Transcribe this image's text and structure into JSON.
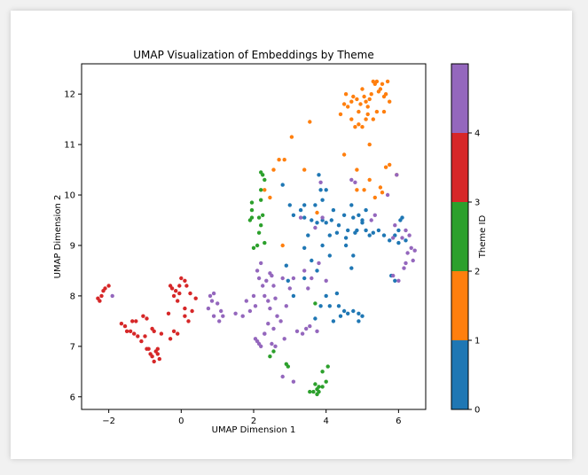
{
  "chart_data": {
    "type": "scatter",
    "title": "UMAP Visualization of Embeddings by Theme",
    "xlabel": "UMAP Dimension 1",
    "ylabel": "UMAP Dimension 2",
    "xlim": [
      -2.75,
      6.75
    ],
    "ylim": [
      5.75,
      12.6
    ],
    "xticks": [
      -2,
      0,
      2,
      4,
      6
    ],
    "xtick_labels": [
      "−2",
      "0",
      "2",
      "4",
      "6"
    ],
    "yticks": [
      6,
      7,
      8,
      9,
      10,
      11,
      12
    ],
    "ytick_labels": [
      "6",
      "7",
      "8",
      "9",
      "10",
      "11",
      "12"
    ],
    "grid": false,
    "colorbar": {
      "label": "Theme ID",
      "range": [
        0,
        5
      ],
      "ticks": [
        0,
        1,
        2,
        3,
        4
      ],
      "tick_labels": [
        "0",
        "1",
        "2",
        "3",
        "4"
      ],
      "colors": [
        "#1f77b4",
        "#ff7f0e",
        "#2ca02c",
        "#d62728",
        "#9467bd"
      ]
    },
    "series": [
      {
        "theme": 0,
        "color": "#1f77b4",
        "points": [
          [
            2.8,
            10.2
          ],
          [
            3.0,
            9.8
          ],
          [
            3.1,
            9.6
          ],
          [
            3.3,
            9.7
          ],
          [
            3.4,
            9.55
          ],
          [
            3.7,
            9.8
          ],
          [
            3.8,
            10.4
          ],
          [
            3.85,
            10.1
          ],
          [
            3.9,
            9.9
          ],
          [
            4.0,
            10.1
          ],
          [
            3.6,
            9.5
          ],
          [
            3.75,
            9.45
          ],
          [
            3.9,
            9.5
          ],
          [
            4.0,
            9.45
          ],
          [
            4.15,
            9.5
          ],
          [
            4.2,
            9.7
          ],
          [
            4.35,
            9.4
          ],
          [
            4.5,
            9.6
          ],
          [
            4.6,
            9.3
          ],
          [
            4.7,
            9.8
          ],
          [
            4.75,
            9.55
          ],
          [
            4.8,
            9.25
          ],
          [
            4.9,
            9.6
          ],
          [
            5.0,
            9.5
          ],
          [
            5.1,
            9.3
          ],
          [
            5.2,
            9.2
          ],
          [
            5.3,
            9.25
          ],
          [
            5.45,
            9.3
          ],
          [
            5.6,
            9.2
          ],
          [
            5.75,
            9.1
          ],
          [
            5.9,
            9.2
          ],
          [
            6.0,
            9.3
          ],
          [
            6.05,
            9.5
          ],
          [
            6.1,
            9.55
          ],
          [
            6.2,
            9.1
          ],
          [
            4.55,
            9.0
          ],
          [
            4.75,
            8.8
          ],
          [
            4.3,
            9.25
          ],
          [
            4.1,
            9.2
          ],
          [
            3.5,
            9.2
          ],
          [
            3.9,
            9.0
          ],
          [
            4.1,
            8.8
          ],
          [
            4.7,
            8.55
          ],
          [
            3.4,
            8.95
          ],
          [
            3.6,
            8.7
          ],
          [
            3.75,
            8.5
          ],
          [
            2.9,
            8.6
          ],
          [
            2.95,
            8.3
          ],
          [
            3.1,
            8.0
          ],
          [
            3.4,
            8.35
          ],
          [
            4.0,
            8.0
          ],
          [
            4.3,
            8.05
          ],
          [
            3.85,
            7.8
          ],
          [
            4.35,
            7.8
          ],
          [
            4.5,
            7.7
          ],
          [
            4.6,
            7.65
          ],
          [
            4.75,
            7.7
          ],
          [
            4.9,
            7.65
          ],
          [
            5.0,
            7.6
          ],
          [
            4.9,
            7.5
          ],
          [
            4.1,
            7.8
          ],
          [
            4.4,
            7.6
          ],
          [
            4.2,
            7.5
          ],
          [
            3.7,
            7.55
          ],
          [
            4.55,
            9.15
          ],
          [
            5.0,
            9.45
          ],
          [
            5.1,
            9.7
          ],
          [
            3.4,
            9.8
          ],
          [
            5.8,
            8.4
          ],
          [
            5.9,
            8.3
          ],
          [
            6.0,
            9.05
          ],
          [
            4.85,
            9.3
          ]
        ]
      },
      {
        "theme": 1,
        "color": "#ff7f0e",
        "points": [
          [
            4.4,
            11.6
          ],
          [
            4.5,
            11.8
          ],
          [
            4.55,
            12.0
          ],
          [
            4.6,
            11.75
          ],
          [
            4.7,
            11.85
          ],
          [
            4.75,
            11.95
          ],
          [
            4.85,
            11.9
          ],
          [
            4.9,
            11.65
          ],
          [
            4.95,
            11.8
          ],
          [
            5.0,
            12.1
          ],
          [
            5.05,
            11.95
          ],
          [
            5.1,
            11.85
          ],
          [
            5.15,
            11.6
          ],
          [
            5.2,
            11.9
          ],
          [
            5.25,
            12.0
          ],
          [
            5.3,
            12.25
          ],
          [
            5.35,
            12.2
          ],
          [
            5.4,
            12.25
          ],
          [
            5.45,
            12.05
          ],
          [
            5.5,
            12.1
          ],
          [
            5.55,
            12.2
          ],
          [
            5.6,
            11.95
          ],
          [
            5.65,
            12.0
          ],
          [
            5.7,
            12.25
          ],
          [
            5.75,
            11.85
          ],
          [
            5.4,
            11.65
          ],
          [
            4.7,
            11.5
          ],
          [
            4.8,
            11.35
          ],
          [
            4.9,
            11.4
          ],
          [
            5.0,
            11.35
          ],
          [
            5.1,
            11.5
          ],
          [
            5.2,
            11.0
          ],
          [
            5.5,
            10.15
          ],
          [
            5.65,
            10.55
          ],
          [
            5.75,
            10.6
          ],
          [
            5.95,
            10.4
          ],
          [
            4.85,
            10.5
          ],
          [
            4.5,
            10.8
          ],
          [
            4.85,
            10.1
          ],
          [
            5.05,
            10.1
          ],
          [
            5.2,
            10.3
          ],
          [
            5.35,
            9.95
          ],
          [
            3.55,
            11.45
          ],
          [
            3.05,
            11.15
          ],
          [
            2.7,
            10.7
          ],
          [
            2.85,
            10.7
          ],
          [
            2.55,
            10.5
          ],
          [
            3.4,
            10.5
          ],
          [
            2.3,
            10.1
          ],
          [
            2.45,
            9.95
          ],
          [
            3.75,
            9.65
          ],
          [
            2.8,
            9.0
          ],
          [
            5.55,
            10.05
          ],
          [
            5.3,
            11.5
          ],
          [
            5.6,
            11.65
          ],
          [
            5.15,
            11.75
          ]
        ]
      },
      {
        "theme": 2,
        "color": "#2ca02c",
        "points": [
          [
            2.2,
            10.45
          ],
          [
            2.25,
            10.4
          ],
          [
            2.3,
            10.3
          ],
          [
            2.2,
            10.1
          ],
          [
            1.95,
            9.85
          ],
          [
            1.95,
            9.7
          ],
          [
            1.95,
            9.55
          ],
          [
            2.15,
            9.55
          ],
          [
            2.2,
            9.4
          ],
          [
            2.15,
            9.25
          ],
          [
            2.3,
            9.05
          ],
          [
            2.1,
            9.0
          ],
          [
            2.0,
            8.95
          ],
          [
            2.25,
            9.6
          ],
          [
            2.2,
            9.9
          ],
          [
            1.9,
            9.5
          ],
          [
            2.45,
            6.8
          ],
          [
            2.55,
            6.9
          ],
          [
            2.9,
            6.65
          ],
          [
            2.95,
            6.6
          ],
          [
            3.9,
            6.5
          ],
          [
            4.05,
            6.6
          ],
          [
            3.7,
            6.25
          ],
          [
            3.75,
            6.15
          ],
          [
            3.8,
            6.2
          ],
          [
            3.9,
            6.2
          ],
          [
            4.0,
            6.3
          ],
          [
            3.55,
            6.1
          ],
          [
            3.65,
            6.1
          ],
          [
            3.75,
            6.05
          ],
          [
            3.8,
            6.1
          ],
          [
            3.7,
            7.85
          ]
        ]
      },
      {
        "theme": 3,
        "color": "#d62728",
        "points": [
          [
            -2.3,
            7.95
          ],
          [
            -2.25,
            7.9
          ],
          [
            -2.2,
            8.0
          ],
          [
            -2.15,
            8.1
          ],
          [
            -2.1,
            8.15
          ],
          [
            -2.0,
            8.2
          ],
          [
            -1.65,
            7.45
          ],
          [
            -1.55,
            7.4
          ],
          [
            -1.5,
            7.3
          ],
          [
            -1.4,
            7.3
          ],
          [
            -1.35,
            7.5
          ],
          [
            -1.25,
            7.5
          ],
          [
            -1.2,
            7.2
          ],
          [
            -1.1,
            7.1
          ],
          [
            -1.0,
            7.2
          ],
          [
            -0.95,
            6.95
          ],
          [
            -0.9,
            6.95
          ],
          [
            -0.85,
            6.85
          ],
          [
            -0.8,
            6.8
          ],
          [
            -0.75,
            6.7
          ],
          [
            -0.7,
            6.9
          ],
          [
            -0.65,
            6.85
          ],
          [
            -0.6,
            6.75
          ],
          [
            -0.55,
            7.25
          ],
          [
            -0.75,
            7.3
          ],
          [
            -0.8,
            7.35
          ],
          [
            -0.95,
            7.55
          ],
          [
            -0.3,
            7.15
          ],
          [
            -0.2,
            7.3
          ],
          [
            -0.1,
            7.25
          ],
          [
            -0.35,
            7.65
          ],
          [
            -0.25,
            8.15
          ],
          [
            -0.2,
            8.0
          ],
          [
            -0.1,
            7.9
          ],
          [
            -0.15,
            8.1
          ],
          [
            -0.3,
            8.2
          ],
          [
            -0.05,
            8.05
          ],
          [
            -0.05,
            8.2
          ],
          [
            0.0,
            8.35
          ],
          [
            0.1,
            8.3
          ],
          [
            0.15,
            8.2
          ],
          [
            0.25,
            8.05
          ],
          [
            0.4,
            7.95
          ],
          [
            0.1,
            7.6
          ],
          [
            0.2,
            7.5
          ],
          [
            0.3,
            7.7
          ],
          [
            0.1,
            7.75
          ],
          [
            -1.05,
            7.6
          ],
          [
            -1.3,
            7.25
          ],
          [
            -0.65,
            6.95
          ]
        ]
      },
      {
        "theme": 4,
        "color": "#9467bd",
        "points": [
          [
            -1.9,
            8.0
          ],
          [
            0.8,
            8.0
          ],
          [
            0.85,
            7.9
          ],
          [
            0.9,
            8.05
          ],
          [
            1.0,
            7.85
          ],
          [
            1.1,
            7.7
          ],
          [
            1.15,
            7.6
          ],
          [
            0.75,
            7.75
          ],
          [
            0.9,
            7.6
          ],
          [
            1.05,
            7.5
          ],
          [
            1.5,
            7.65
          ],
          [
            1.7,
            7.6
          ],
          [
            1.8,
            7.9
          ],
          [
            1.9,
            7.7
          ],
          [
            2.0,
            8.0
          ],
          [
            2.05,
            7.8
          ],
          [
            2.1,
            8.5
          ],
          [
            2.15,
            8.35
          ],
          [
            2.2,
            8.65
          ],
          [
            2.25,
            8.2
          ],
          [
            2.3,
            8.0
          ],
          [
            2.35,
            8.3
          ],
          [
            2.45,
            8.45
          ],
          [
            2.5,
            8.4
          ],
          [
            2.55,
            8.2
          ],
          [
            2.4,
            7.9
          ],
          [
            2.45,
            7.75
          ],
          [
            2.6,
            7.95
          ],
          [
            2.65,
            7.6
          ],
          [
            2.75,
            7.5
          ],
          [
            2.55,
            7.35
          ],
          [
            2.4,
            7.45
          ],
          [
            2.3,
            7.25
          ],
          [
            2.05,
            7.15
          ],
          [
            2.1,
            7.1
          ],
          [
            2.15,
            7.05
          ],
          [
            2.2,
            7.0
          ],
          [
            2.3,
            7.25
          ],
          [
            2.5,
            7.05
          ],
          [
            2.85,
            7.15
          ],
          [
            2.8,
            6.4
          ],
          [
            3.1,
            6.3
          ],
          [
            3.2,
            7.3
          ],
          [
            3.35,
            7.25
          ],
          [
            3.45,
            7.35
          ],
          [
            3.55,
            7.4
          ],
          [
            3.75,
            7.3
          ],
          [
            3.5,
            8.15
          ],
          [
            3.6,
            8.35
          ],
          [
            3.8,
            8.65
          ],
          [
            3.7,
            9.35
          ],
          [
            3.9,
            9.55
          ],
          [
            4.0,
            8.3
          ],
          [
            3.4,
            8.5
          ],
          [
            3.1,
            8.35
          ],
          [
            3.0,
            8.15
          ],
          [
            2.9,
            7.8
          ],
          [
            5.85,
            8.4
          ],
          [
            6.0,
            8.3
          ],
          [
            6.15,
            8.55
          ],
          [
            6.2,
            8.65
          ],
          [
            6.25,
            8.85
          ],
          [
            6.35,
            8.95
          ],
          [
            6.4,
            8.7
          ],
          [
            6.45,
            8.9
          ],
          [
            6.1,
            9.15
          ],
          [
            6.2,
            9.3
          ],
          [
            6.3,
            9.2
          ],
          [
            5.85,
            9.15
          ],
          [
            5.9,
            9.4
          ],
          [
            5.95,
            10.4
          ],
          [
            5.7,
            10.0
          ],
          [
            4.7,
            10.3
          ],
          [
            4.8,
            10.25
          ],
          [
            5.25,
            9.5
          ],
          [
            5.35,
            9.6
          ],
          [
            3.85,
            10.25
          ],
          [
            3.3,
            9.55
          ],
          [
            2.8,
            8.35
          ],
          [
            2.6,
            7.0
          ]
        ]
      }
    ]
  }
}
